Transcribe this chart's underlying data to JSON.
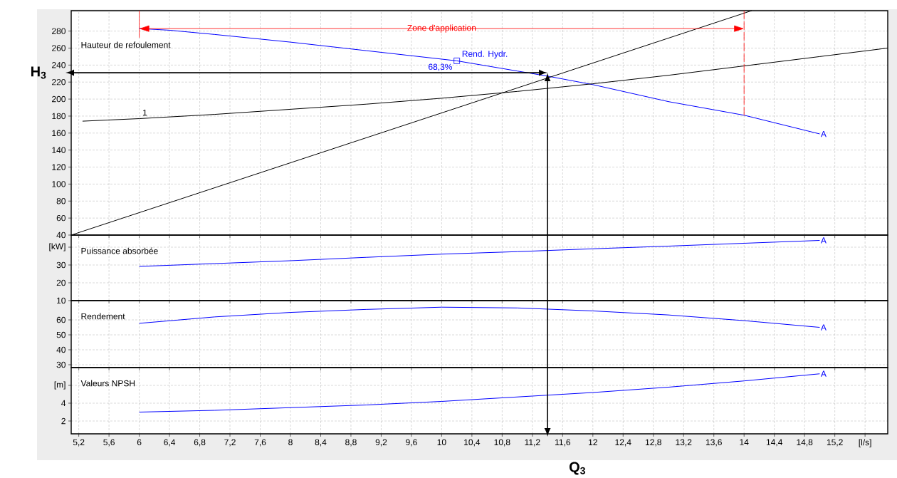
{
  "chart_data": [
    {
      "type": "line",
      "title": "Hauteur de refoulement",
      "xlim": [
        5.1,
        15.9
      ],
      "ylim": [
        40,
        304
      ],
      "grid": true,
      "tick_labels": "y",
      "xticks": [
        5.2,
        5.6,
        6,
        6.4,
        6.8,
        7.2,
        7.6,
        8,
        8.4,
        8.8,
        9.2,
        9.6,
        10,
        10.4,
        10.8,
        11.2,
        11.6,
        12,
        12.4,
        12.8,
        13.2,
        13.6,
        14,
        14.4,
        14.8,
        15.2,
        15.6
      ],
      "yticks": [
        40,
        60,
        80,
        100,
        120,
        140,
        160,
        180,
        200,
        220,
        240,
        260,
        280
      ],
      "series": [
        {
          "name": "A",
          "color": "#0000ff",
          "x": [
            6,
            6.4,
            7,
            8,
            9,
            10,
            10.2,
            11,
            11.4,
            12,
            13,
            14,
            15
          ],
          "values": [
            283,
            281,
            276,
            267,
            257,
            247,
            245,
            233,
            227,
            217,
            197,
            181,
            159
          ]
        },
        {
          "name": "1",
          "color": "#000000",
          "x": [
            5.25,
            6,
            7,
            8,
            9,
            10,
            11,
            12,
            13,
            14,
            15,
            15.9
          ],
          "values": [
            174,
            177,
            182,
            188,
            194,
            201,
            209,
            218,
            228,
            239,
            250,
            260
          ]
        },
        {
          "color": "#000000",
          "x": [
            5.1,
            14.1
          ],
          "values": [
            40,
            304
          ]
        },
        {
          "type": "scatter",
          "marker": "square",
          "color": "#0000ff",
          "x": [
            10.2
          ],
          "values": [
            245
          ]
        }
      ],
      "ref_lines": [
        {
          "axis": "x",
          "value": 6,
          "color": "#ff0000"
        },
        {
          "axis": "x",
          "value": 14,
          "color": "#ff0000",
          "line_style": "dashed"
        },
        {
          "axis": "y",
          "value": 231,
          "label": "H$_{3}$",
          "color": "#000000"
        },
        {
          "axis": "x",
          "value": 11.4,
          "label": "Q$_{3}$",
          "color": "#000000"
        }
      ],
      "annotations": [
        "Zone d'application",
        "Rend. Hydr.",
        "68,3%"
      ]
    },
    {
      "type": "line",
      "title": "Puissance absorbée",
      "xlim": [
        5.1,
        15.9
      ],
      "ylim": [
        10,
        46.8
      ],
      "grid": true,
      "tick_labels": "y",
      "xticks": [
        5.2,
        5.6,
        6,
        6.4,
        6.8,
        7.2,
        7.6,
        8,
        8.4,
        8.8,
        9.2,
        9.6,
        10,
        10.4,
        10.8,
        11.2,
        11.6,
        12,
        12.4,
        12.8,
        13.2,
        13.6,
        14,
        14.4,
        14.8,
        15.2,
        15.6
      ],
      "yticks": [
        10,
        20,
        30,
        {
          "value": 40,
          "label": "[kW]"
        }
      ],
      "series": [
        {
          "name": "A",
          "color": "#0000ff",
          "x": [
            6,
            7,
            8,
            9,
            10,
            11,
            12,
            13,
            14,
            15
          ],
          "values": [
            29.2,
            30.8,
            32.4,
            34.3,
            36.1,
            37.5,
            39.1,
            40.6,
            42.2,
            43.8
          ]
        }
      ]
    },
    {
      "type": "line",
      "title": "Rendement",
      "xlim": [
        5.1,
        15.9
      ],
      "ylim": [
        28.1,
        72.9
      ],
      "grid": true,
      "tick_labels": "y",
      "xticks": [
        5.2,
        5.6,
        6,
        6.4,
        6.8,
        7.2,
        7.6,
        8,
        8.4,
        8.8,
        9.2,
        9.6,
        10,
        10.4,
        10.8,
        11.2,
        11.6,
        12,
        12.4,
        12.8,
        13.2,
        13.6,
        14,
        14.4,
        14.8,
        15.2,
        15.6
      ],
      "yticks": [
        30,
        40,
        50,
        60
      ],
      "series": [
        {
          "name": "A",
          "color": "#0000ff",
          "x": [
            6,
            7,
            8,
            9,
            10,
            11,
            12,
            13,
            14,
            15
          ],
          "values": [
            57.7,
            62,
            65,
            67,
            68.5,
            68,
            66,
            63.3,
            59.5,
            55
          ]
        }
      ]
    },
    {
      "type": "line",
      "title": "Valeurs NPSH",
      "xlim": [
        5.1,
        15.9
      ],
      "ylim": [
        0.56,
        8
      ],
      "grid": true,
      "xticks": [
        {
          "value": 5.2,
          "label": "5,2"
        },
        {
          "value": 5.6,
          "label": "5,6"
        },
        6,
        {
          "value": 6.4,
          "label": "6,4"
        },
        {
          "value": 6.8,
          "label": "6,8"
        },
        {
          "value": 7.2,
          "label": "7,2"
        },
        {
          "value": 7.6,
          "label": "7,6"
        },
        8,
        {
          "value": 8.4,
          "label": "8,4"
        },
        {
          "value": 8.8,
          "label": "8,8"
        },
        {
          "value": 9.2,
          "label": "9,2"
        },
        {
          "value": 9.6,
          "label": "9,6"
        },
        10,
        {
          "value": 10.4,
          "label": "10,4"
        },
        {
          "value": 10.8,
          "label": "10,8"
        },
        {
          "value": 11.2,
          "label": "11,2"
        },
        {
          "value": 11.6,
          "label": "11,6"
        },
        12,
        {
          "value": 12.4,
          "label": "12,4"
        },
        {
          "value": 12.8,
          "label": "12,8"
        },
        {
          "value": 13.2,
          "label": "13,2"
        },
        {
          "value": 13.6,
          "label": "13,6"
        },
        14,
        {
          "value": 14.4,
          "label": "14,4"
        },
        {
          "value": 14.8,
          "label": "14,8"
        },
        {
          "value": 15.2,
          "label": "15,2"
        },
        {
          "value": 15.6,
          "label": "[l/s]"
        }
      ],
      "yticks": [
        2,
        4,
        {
          "value": 6,
          "label": "[m]"
        }
      ],
      "series": [
        {
          "name": "A",
          "color": "#0000ff",
          "x": [
            6,
            7,
            8,
            9,
            10,
            11,
            12,
            13,
            14,
            15
          ],
          "values": [
            3.0,
            3.2,
            3.5,
            3.8,
            4.2,
            4.7,
            5.2,
            5.8,
            6.5,
            7.3
          ]
        }
      ]
    }
  ]
}
